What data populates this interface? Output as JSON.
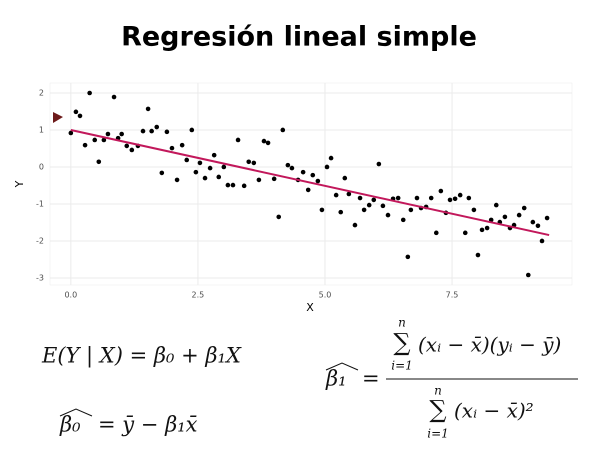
{
  "title": "Regresión lineal simple",
  "chart_data": {
    "type": "scatter",
    "x_label": "X",
    "y_label": "Y",
    "xlim": [
      -0.41,
      9.86
    ],
    "ylim": [
      -3.19,
      2.27
    ],
    "xticks": [
      {
        "value": 0,
        "label": "0.0"
      },
      2.5,
      {
        "value": 5,
        "label": "5.0"
      },
      7.5
    ],
    "yticks": [
      -3,
      -2,
      -1,
      0,
      1,
      2
    ],
    "grid": true,
    "series": [
      {
        "color": "#000000",
        "x": [
          0.0,
          0.1,
          0.18,
          0.28,
          0.37,
          0.47,
          0.55,
          0.65,
          0.73,
          0.85,
          0.93,
          1.0,
          1.1,
          1.2,
          1.32,
          1.42,
          1.52,
          1.59,
          1.69,
          1.79,
          1.89,
          1.99,
          2.09,
          2.19,
          2.28,
          2.38,
          2.46,
          2.54,
          2.64,
          2.74,
          2.82,
          2.91,
          3.01,
          3.09,
          3.19,
          3.29,
          3.41,
          3.5,
          3.6,
          3.7,
          3.8,
          3.88,
          4.0,
          4.09,
          4.17,
          4.27,
          4.35,
          4.47,
          4.57,
          4.67,
          4.76,
          4.86,
          4.94,
          5.04,
          5.12,
          5.22,
          5.31,
          5.39,
          5.47,
          5.59,
          5.69,
          5.77,
          5.87,
          5.96,
          6.06,
          6.14,
          6.24,
          6.34,
          6.44,
          6.54,
          6.63,
          6.69,
          6.81,
          6.89,
          6.99,
          7.09,
          7.19,
          7.28,
          7.38,
          7.46,
          7.56,
          7.66,
          7.76,
          7.83,
          7.93,
          8.01,
          8.09,
          8.19,
          8.27,
          8.37,
          8.44,
          8.54,
          8.64,
          8.72,
          8.82,
          8.92,
          9.0,
          9.09,
          9.19,
          9.27,
          9.37
        ],
        "values": [
          0.92,
          1.49,
          1.38,
          0.59,
          2.0,
          0.73,
          0.14,
          0.73,
          0.89,
          1.89,
          0.78,
          0.89,
          0.57,
          0.46,
          0.57,
          0.97,
          1.57,
          0.97,
          1.08,
          -0.16,
          0.95,
          0.51,
          -0.35,
          0.59,
          0.19,
          1.0,
          -0.14,
          0.11,
          -0.3,
          -0.03,
          0.32,
          -0.27,
          0.0,
          -0.49,
          -0.49,
          0.73,
          -0.51,
          0.14,
          0.11,
          -0.35,
          0.7,
          0.65,
          -0.32,
          -1.35,
          1.0,
          0.05,
          -0.03,
          -0.35,
          -0.14,
          -0.62,
          -0.22,
          -0.38,
          -1.16,
          0.0,
          0.24,
          -0.76,
          -1.22,
          -0.3,
          -0.73,
          -1.57,
          -0.84,
          -1.16,
          -1.03,
          -0.89,
          0.08,
          -1.05,
          -1.3,
          -0.86,
          -0.84,
          -1.43,
          -2.43,
          -1.16,
          -0.84,
          -1.11,
          -1.08,
          -0.84,
          -1.78,
          -0.65,
          -1.24,
          -0.89,
          -0.86,
          -0.76,
          -1.78,
          -0.84,
          -1.16,
          -2.38,
          -1.7,
          -1.65,
          -1.43,
          -1.03,
          -1.49,
          -1.35,
          -1.65,
          -1.57,
          -1.3,
          -1.11,
          -2.92,
          -1.49,
          -1.59,
          -2.0,
          -1.38
        ]
      },
      {
        "color": "#c2185b",
        "line": true,
        "x": [
          0,
          9.41
        ],
        "values": [
          1.0,
          -1.84
        ]
      }
    ]
  },
  "formulas": {
    "expectation": "E(Y | X) = β₀ + β₁X",
    "beta0": {
      "lhs": "β₀",
      "rhs": "= ȳ − β₁x̄"
    },
    "beta1": {
      "lhs": "β₁",
      "eq": "=",
      "numerator": {
        "sum": "∑",
        "upper": "n",
        "lower": "i=1",
        "expr": "(xᵢ − x̄)(yᵢ − ȳ)"
      },
      "denominator": {
        "sum": "∑",
        "upper": "n",
        "lower": "i=1",
        "expr": "(xᵢ − x̄)²"
      }
    }
  }
}
